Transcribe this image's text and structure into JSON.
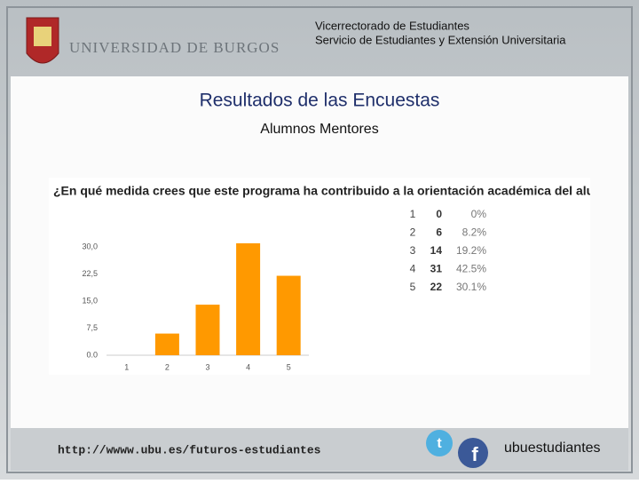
{
  "header": {
    "university": "UNIVERSIDAD DE BURGOS",
    "line1": "Vicerrectorado de Estudiantes",
    "line2": "Servicio de Estudiantes y Extensión Universitaria"
  },
  "title": "Resultados de las Encuestas",
  "subtitle": "Alumnos Mentores",
  "chart_data": {
    "type": "bar",
    "title": "¿En qué medida crees que este programa ha contribuido a la orientación académica del alumno",
    "categories": [
      "1",
      "2",
      "3",
      "4",
      "5"
    ],
    "values": [
      0,
      6,
      14,
      31,
      22
    ],
    "percents": [
      0,
      8.2,
      19.2,
      42.5,
      30.1
    ],
    "percent_labels": [
      "0%",
      "8.2%",
      "19.2%",
      "42.5%",
      "30.1%"
    ],
    "color": "#ff9900",
    "ylim": [
      0,
      30
    ],
    "yticks": [
      {
        "value": 0,
        "label": "0.0"
      },
      {
        "value": 7.5,
        "label": "7,5"
      },
      {
        "value": 15,
        "label": "15,0"
      },
      {
        "value": 22.5,
        "label": "22,5"
      },
      {
        "value": 30,
        "label": "30,0"
      }
    ],
    "grid": false
  },
  "footer": {
    "url": "http://wwww.ubu.es/futuros-estudiantes",
    "handle": "ubuestudiantes"
  }
}
